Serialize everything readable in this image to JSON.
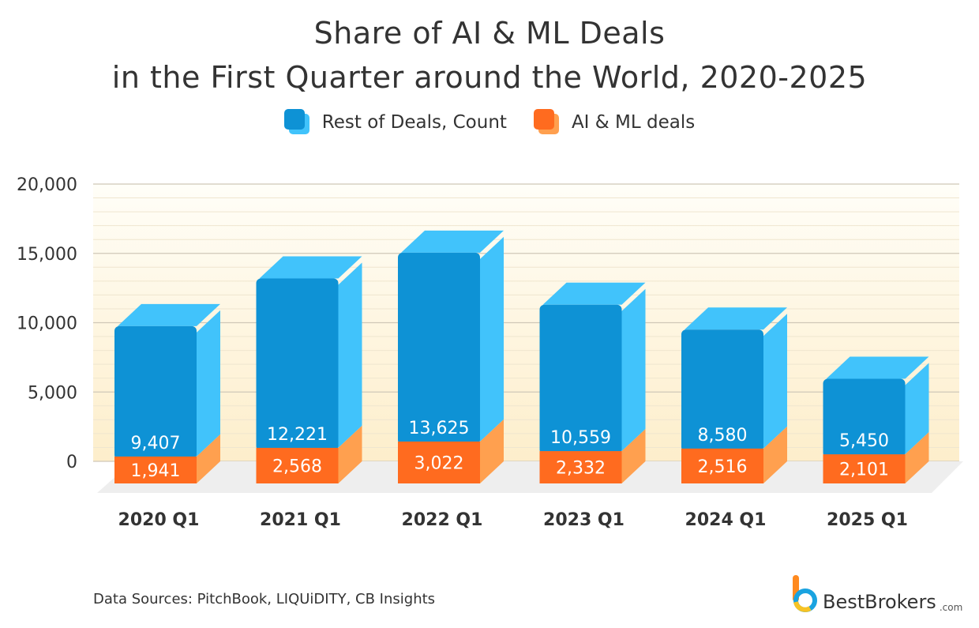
{
  "chart_data": {
    "type": "bar",
    "stacked": true,
    "title_lines": [
      "Share of AI & ML Deals",
      "in the First Quarter around the World, 2020-2025"
    ],
    "categories": [
      "2020 Q1",
      "2021 Q1",
      "2022 Q1",
      "2023 Q1",
      "2024 Q1",
      "2025 Q1"
    ],
    "series": [
      {
        "name": "AI & ML deals",
        "values": [
          1941,
          2568,
          3022,
          2332,
          2516,
          2101
        ],
        "labels": [
          "1,941",
          "2,568",
          "3,022",
          "2,332",
          "2,516",
          "2,101"
        ],
        "color": "#ff6b1f",
        "side_color": "#ffa04f"
      },
      {
        "name": "Rest of Deals, Count",
        "values": [
          9407,
          12221,
          13625,
          10559,
          8580,
          5450
        ],
        "labels": [
          "9,407",
          "12,221",
          "13,625",
          "10,559",
          "8,580",
          "5,450"
        ],
        "color": "#0e92d5",
        "side_color": "#41c3fb"
      }
    ],
    "yticks": [
      0,
      5000,
      10000,
      15000,
      20000
    ],
    "ytick_labels": [
      "0",
      "5,000",
      "10,000",
      "15,000",
      "20,000"
    ],
    "ylim": [
      0,
      20000
    ],
    "legend": {
      "position": "top-center"
    }
  },
  "source": "Data Sources: PitchBook, LIQUiDITY, CB Insights",
  "brand": {
    "name": "BestBrokers",
    "tld": ".com"
  },
  "colors": {
    "text": "#333333",
    "grid": "#e6e0d0",
    "band_top": "#fffdf3",
    "band_bottom": "#fdefcf",
    "floor": "#eeeeee"
  }
}
